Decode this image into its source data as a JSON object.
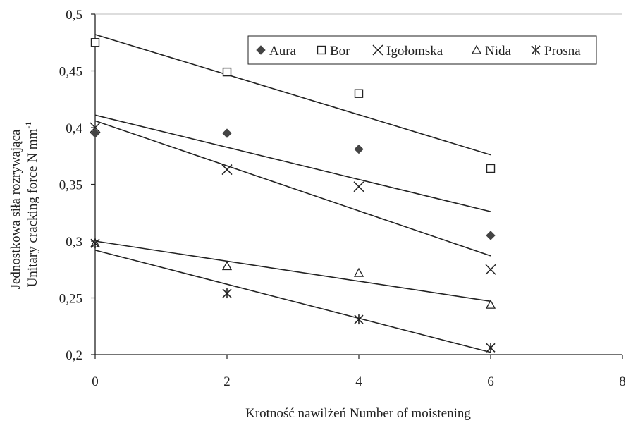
{
  "chart_data": {
    "type": "scatter",
    "xlabel": "Krotność nawilżeń  Number of moistening",
    "ylabel_line1": "Jednostkowa siła rozrywająca",
    "ylabel_line2": "Unitary cracking force N mm",
    "ylabel_superscript": "-1",
    "xlim": [
      0,
      8
    ],
    "ylim": [
      0.2,
      0.5
    ],
    "x_ticks": [
      0,
      2,
      4,
      6,
      8
    ],
    "x_tick_labels": [
      "0",
      "2",
      "4",
      "6",
      "8"
    ],
    "y_ticks": [
      0.2,
      0.25,
      0.3,
      0.35,
      0.4,
      0.45,
      0.5
    ],
    "y_tick_labels": [
      "0,2",
      "0,25",
      "0,3",
      "0,35",
      "0,4",
      "0,45",
      "0,5"
    ],
    "legend_position": "top-right",
    "grid": false,
    "series": [
      {
        "name": "Aura",
        "marker": "diamond-filled",
        "x": [
          0,
          2,
          4,
          6
        ],
        "y": [
          0.395,
          0.395,
          0.381,
          0.305
        ],
        "trendline": [
          [
            0,
            0.411
          ],
          [
            6,
            0.326
          ]
        ]
      },
      {
        "name": "Bor",
        "marker": "square-open",
        "x": [
          0,
          2,
          4,
          6
        ],
        "y": [
          0.475,
          0.449,
          0.43,
          0.364
        ],
        "trendline": [
          [
            0,
            0.482
          ],
          [
            6,
            0.376
          ]
        ]
      },
      {
        "name": "Igołomska",
        "marker": "x",
        "x": [
          0,
          2,
          4,
          6
        ],
        "y": [
          0.4,
          0.363,
          0.348,
          0.275
        ],
        "trendline": [
          [
            0,
            0.406
          ],
          [
            6,
            0.287
          ]
        ]
      },
      {
        "name": "Nida",
        "marker": "triangle-open",
        "x": [
          0,
          2,
          4,
          6
        ],
        "y": [
          0.298,
          0.278,
          0.272,
          0.244
        ],
        "trendline": [
          [
            0,
            0.3
          ],
          [
            6,
            0.247
          ]
        ]
      },
      {
        "name": "Prosna",
        "marker": "asterisk",
        "x": [
          0,
          2,
          4,
          6
        ],
        "y": [
          0.298,
          0.254,
          0.231,
          0.206
        ],
        "trendline": [
          [
            0,
            0.292
          ],
          [
            6,
            0.202
          ]
        ]
      }
    ],
    "colors": {
      "ink": "#222222",
      "marker_fill": "#444444",
      "background": "#ffffff"
    }
  }
}
